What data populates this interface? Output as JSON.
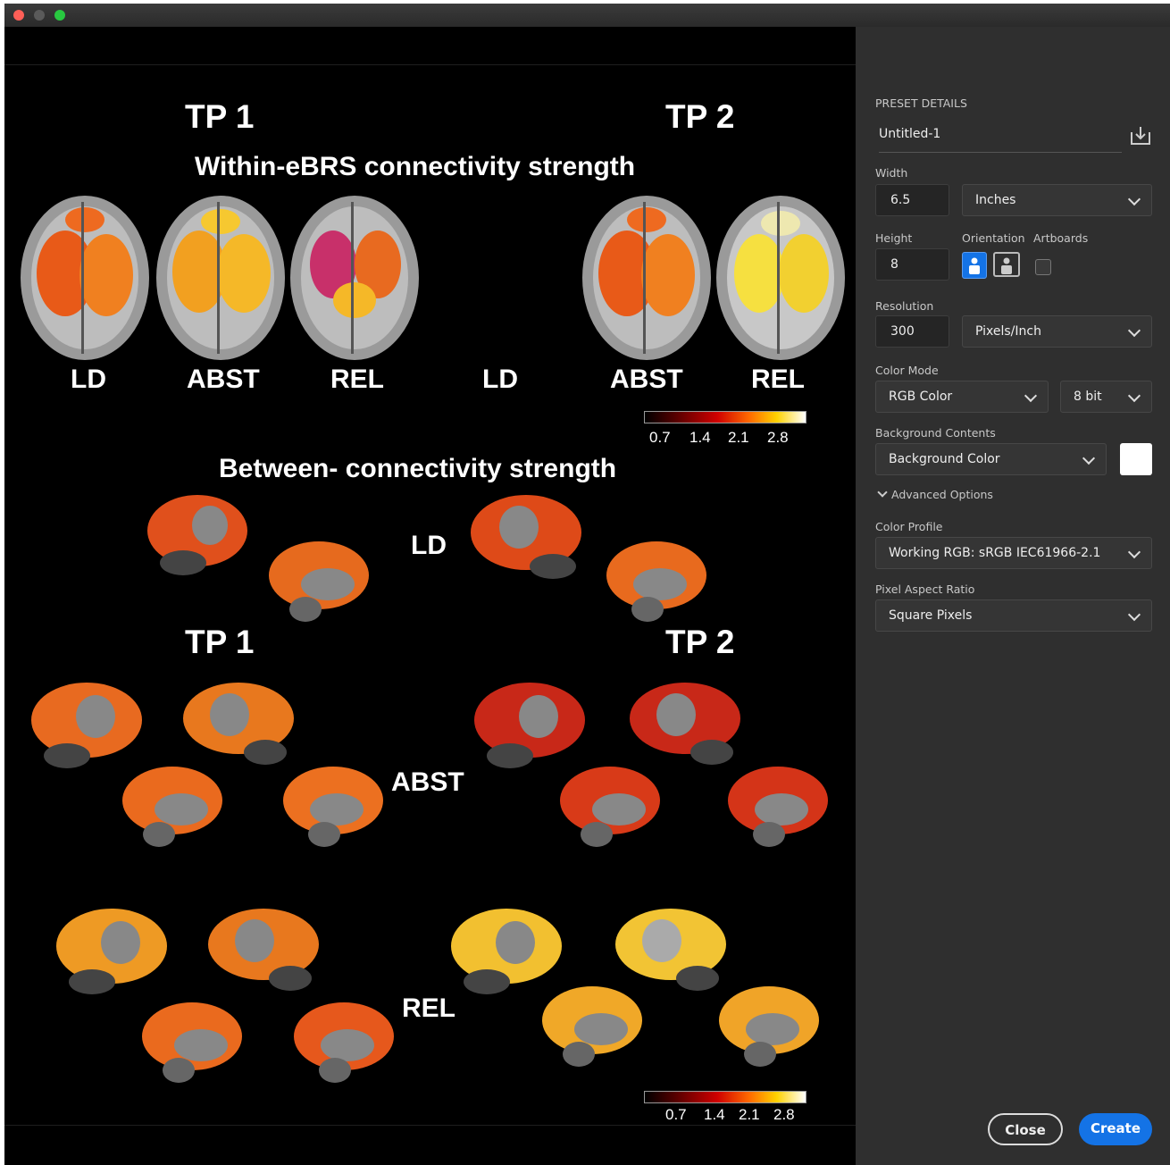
{
  "window": {
    "traffic_lights": [
      "#ff5f57",
      "#5a5a5a",
      "#28c840"
    ]
  },
  "figure": {
    "tp1_top": "TP 1",
    "tp2_top": "TP 2",
    "title_within": "Within-eBRS connectivity strength",
    "axial_labels": [
      "LD",
      "ABST",
      "REL",
      "LD",
      "ABST",
      "REL"
    ],
    "colorbar_ticks": [
      "0.7",
      "1.4",
      "2.1",
      "2.8"
    ],
    "title_between": "Between- connectivity strength",
    "row_ld": "LD",
    "tp1_mid": "TP 1",
    "tp2_mid": "TP 2",
    "row_abst": "ABST",
    "row_rel": "REL",
    "colorbar_ticks_bottom": [
      "0.7",
      "1.4",
      "2.1",
      "2.8"
    ]
  },
  "panel": {
    "section_title": "PRESET DETAILS",
    "preset_name": "Untitled-1",
    "save_icon": "save-preset-icon",
    "width_label": "Width",
    "width_value": "6.5",
    "width_unit": "Inches",
    "height_label": "Height",
    "height_value": "8",
    "orientation_label": "Orientation",
    "artboards_label": "Artboards",
    "orientation_selected": "portrait",
    "artboards_checked": false,
    "resolution_label": "Resolution",
    "resolution_value": "300",
    "resolution_unit": "Pixels/Inch",
    "color_mode_label": "Color Mode",
    "color_mode": "RGB Color",
    "bit_depth": "8 bit",
    "background_label": "Background Contents",
    "background": "Background Color",
    "background_swatch": "#ffffff",
    "advanced_label": "Advanced Options",
    "color_profile_label": "Color Profile",
    "color_profile": "Working RGB: sRGB IEC61966-2.1",
    "pixel_aspect_label": "Pixel Aspect Ratio",
    "pixel_aspect": "Square Pixels",
    "close_label": "Close",
    "create_label": "Create",
    "accent": "#1473e6"
  }
}
